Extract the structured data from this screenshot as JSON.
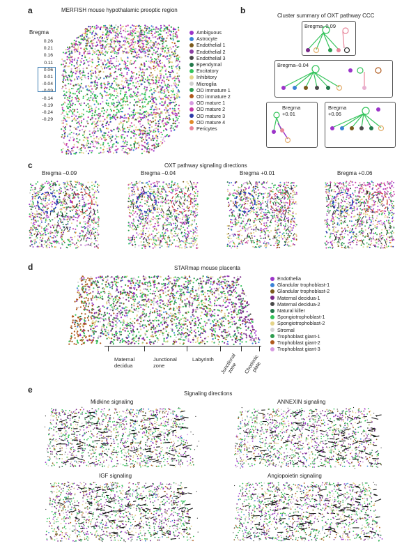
{
  "panel_a": {
    "label": "a",
    "title": "MERFISH mouse hypothalamic preoptic region",
    "bregma_label": "Bregma",
    "bregma_values": [
      "0.26",
      "0.21",
      "0.16",
      "0.11",
      "0.06",
      "0.01",
      "-0.04",
      "-0.09",
      "-0.14",
      "-0.19",
      "-0.24",
      "-0.29"
    ],
    "legend": [
      {
        "name": "Ambiguous",
        "color": "#9b34c9"
      },
      {
        "name": "Astrocyte",
        "color": "#3b82d6"
      },
      {
        "name": "Endothelial 1",
        "color": "#7a5a1c"
      },
      {
        "name": "Endothelial 2",
        "color": "#8a3ea3"
      },
      {
        "name": "Endothelial 3",
        "color": "#4a4a4a"
      },
      {
        "name": "Ependymal",
        "color": "#22774a"
      },
      {
        "name": "Excitatory",
        "color": "#33c35a"
      },
      {
        "name": "Inhibitory",
        "color": "#e4d488"
      },
      {
        "name": "Microglia",
        "color": "#cfcfcf"
      },
      {
        "name": "OD immature 1",
        "color": "#2e9c4f"
      },
      {
        "name": "OD immature 2",
        "color": "#b0591c"
      },
      {
        "name": "OD mature 1",
        "color": "#d69ae0"
      },
      {
        "name": "OD mature 2",
        "color": "#c63aa8"
      },
      {
        "name": "OD mature 3",
        "color": "#2b3aa8"
      },
      {
        "name": "OD mature 4",
        "color": "#e08a2a"
      },
      {
        "name": "Pericytes",
        "color": "#e8859a"
      }
    ]
  },
  "panel_b": {
    "label": "b",
    "title": "Cluster summary of OXT pathway CCC",
    "boxes": [
      "Bregma–0.09",
      "Bregma–0.04",
      "Bregma +0.01",
      "Bregma +0.06"
    ],
    "box3_line1": "Bregma",
    "box3_line2": "+0.01",
    "box4_line1": "Bregma",
    "box4_line2": "+0.06"
  },
  "panel_c": {
    "label": "c",
    "title": "OXT pathway signaling directions",
    "sections": [
      "Bregma –0.09",
      "Bregma –0.04",
      "Bregma +0.01",
      "Bregma +0.06"
    ]
  },
  "panel_d": {
    "label": "d",
    "title": "STARmap mouse placenta",
    "regions": [
      "Maternal decidua",
      "Junctional zone",
      "Labyrinth",
      "Junctional zone",
      "Chorionic plate"
    ],
    "region_lines": {
      "maternal": [
        "Maternal",
        "decidua"
      ],
      "junctional": [
        "Junctional",
        "zone"
      ],
      "labyrinth": [
        "Labyrinth"
      ],
      "junctional2": [
        "Junctional",
        "zone"
      ],
      "chorionic": [
        "Chorionic",
        "plate"
      ]
    },
    "legend": [
      {
        "name": "Endothelia",
        "color": "#9b34c9"
      },
      {
        "name": "Glandular trophoblast-1",
        "color": "#3b82d6"
      },
      {
        "name": "Glandular trophoblast-2",
        "color": "#7a5a1c"
      },
      {
        "name": "Maternal decidua-1",
        "color": "#7a2a8a"
      },
      {
        "name": "Maternal decidua-2",
        "color": "#4a4a4a"
      },
      {
        "name": "Natural killer",
        "color": "#22774a"
      },
      {
        "name": "Spongiotrophoblast-1",
        "color": "#33c35a"
      },
      {
        "name": "Spongiotrophoblast-2",
        "color": "#e4d488"
      },
      {
        "name": "Stromal",
        "color": "#d4d4d4"
      },
      {
        "name": "Trophoblast giant-1",
        "color": "#2e9c4f"
      },
      {
        "name": "Trophoblast giant-2",
        "color": "#b0591c"
      },
      {
        "name": "Trophoblast giant-3",
        "color": "#d69ae0"
      }
    ]
  },
  "panel_e": {
    "label": "e",
    "title": "Signaling directions",
    "subplots": [
      "Midkine signaling",
      "ANNEXIN signaling",
      "IGF signaling",
      "Angiopoietin signaling"
    ]
  }
}
